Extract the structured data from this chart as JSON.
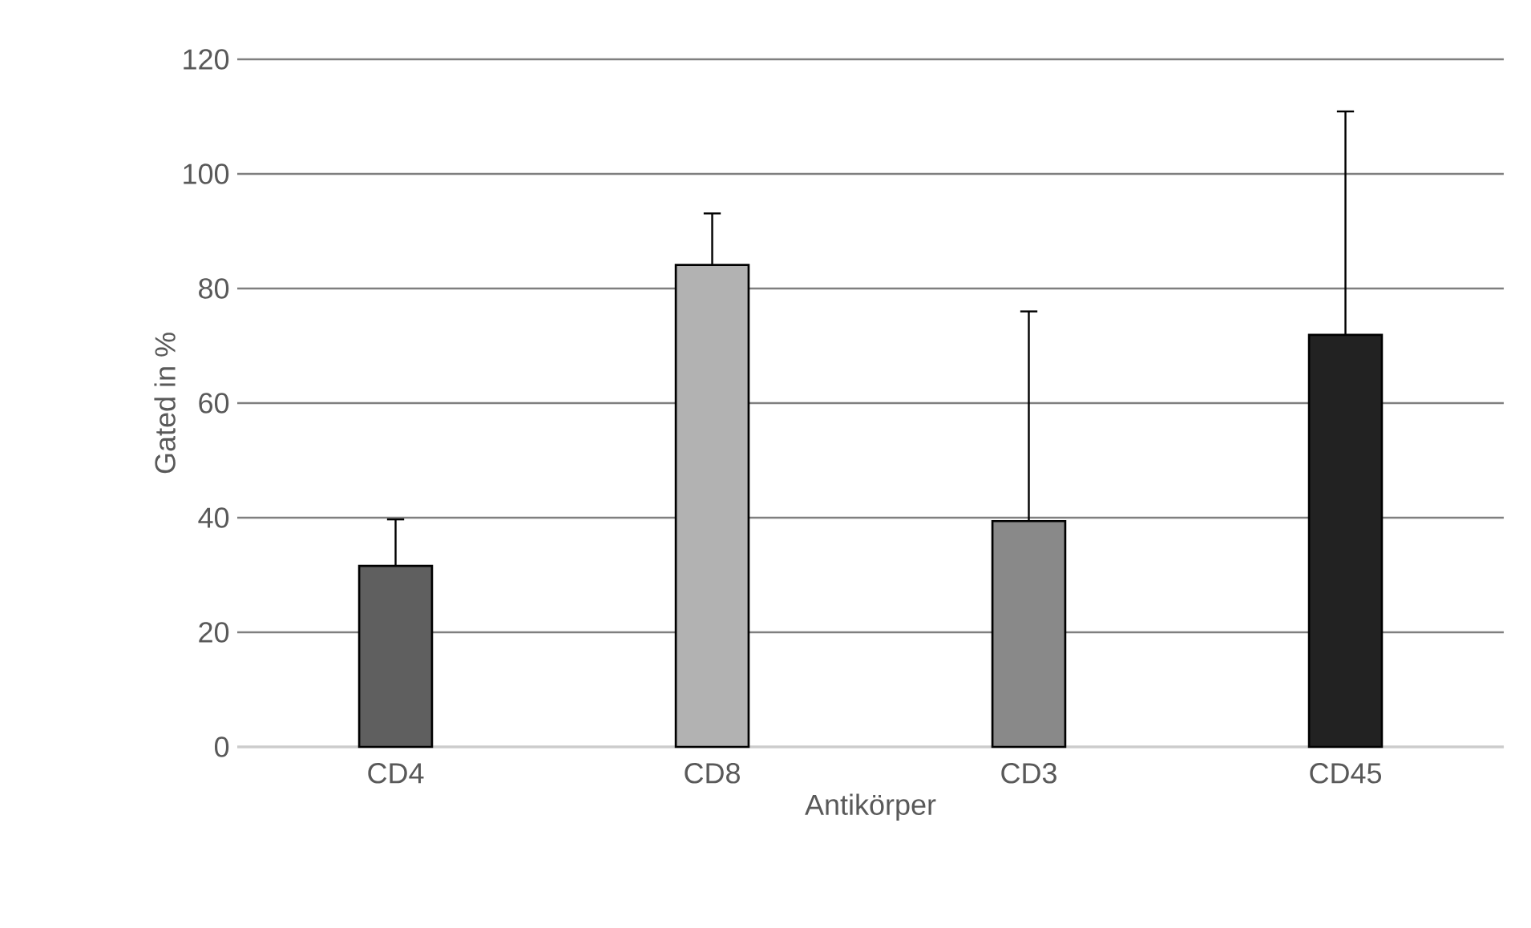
{
  "chart_data": {
    "type": "bar",
    "xlabel": "Antikörper",
    "ylabel": "Gated in %",
    "categories": [
      "CD4",
      "CD8",
      "CD3",
      "CD45"
    ],
    "values": [
      31.6,
      84.1,
      39.4,
      71.9
    ],
    "colors": [
      "#5f5f5f",
      "#b2b2b2",
      "#898989",
      "#222222"
    ],
    "errors": [
      [
        31.6,
        39.7
      ],
      [
        84.1,
        93.1
      ],
      [
        39.4,
        76.0
      ],
      [
        71.9,
        110.9
      ]
    ],
    "ylim": [
      0,
      120
    ],
    "yticks": [
      0,
      20,
      40,
      60,
      80,
      100,
      120
    ],
    "grid": "y"
  }
}
